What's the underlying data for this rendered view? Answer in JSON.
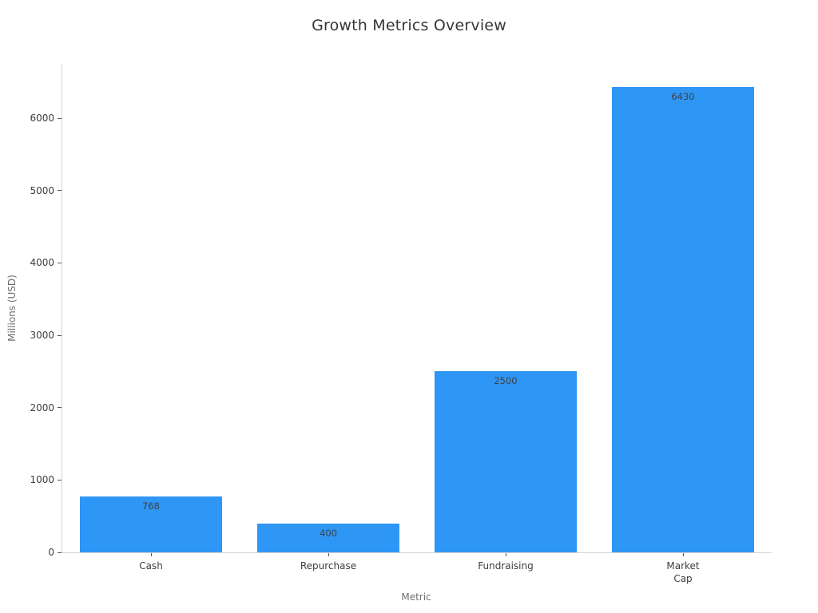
{
  "chart_data": {
    "type": "bar",
    "title": "Growth Metrics Overview",
    "xlabel": "Metric",
    "ylabel": "Millions (USD)",
    "categories": [
      "Cash",
      "Repurchase",
      "Fundraising",
      "Market Cap"
    ],
    "tick_labels": [
      "Cash",
      "Repurchase",
      "Fundraising",
      "Market\nCap"
    ],
    "values": [
      768,
      400,
      2500,
      6430
    ],
    "value_labels": [
      "768",
      "400",
      "2500",
      "6430"
    ],
    "ylim": [
      0,
      6750
    ],
    "yticks": [
      0,
      1000,
      2000,
      3000,
      4000,
      5000,
      6000
    ],
    "grid": false,
    "legend": "none",
    "bar_color": "#2E96F5",
    "spine_color": "#d4d4d4",
    "tick_mark_color": "#555555",
    "value_label_color": "#414141",
    "tick_label_color": "#3d3d3d",
    "axis_title_color": "#6e6e6e",
    "background_color": "#ffffff"
  }
}
